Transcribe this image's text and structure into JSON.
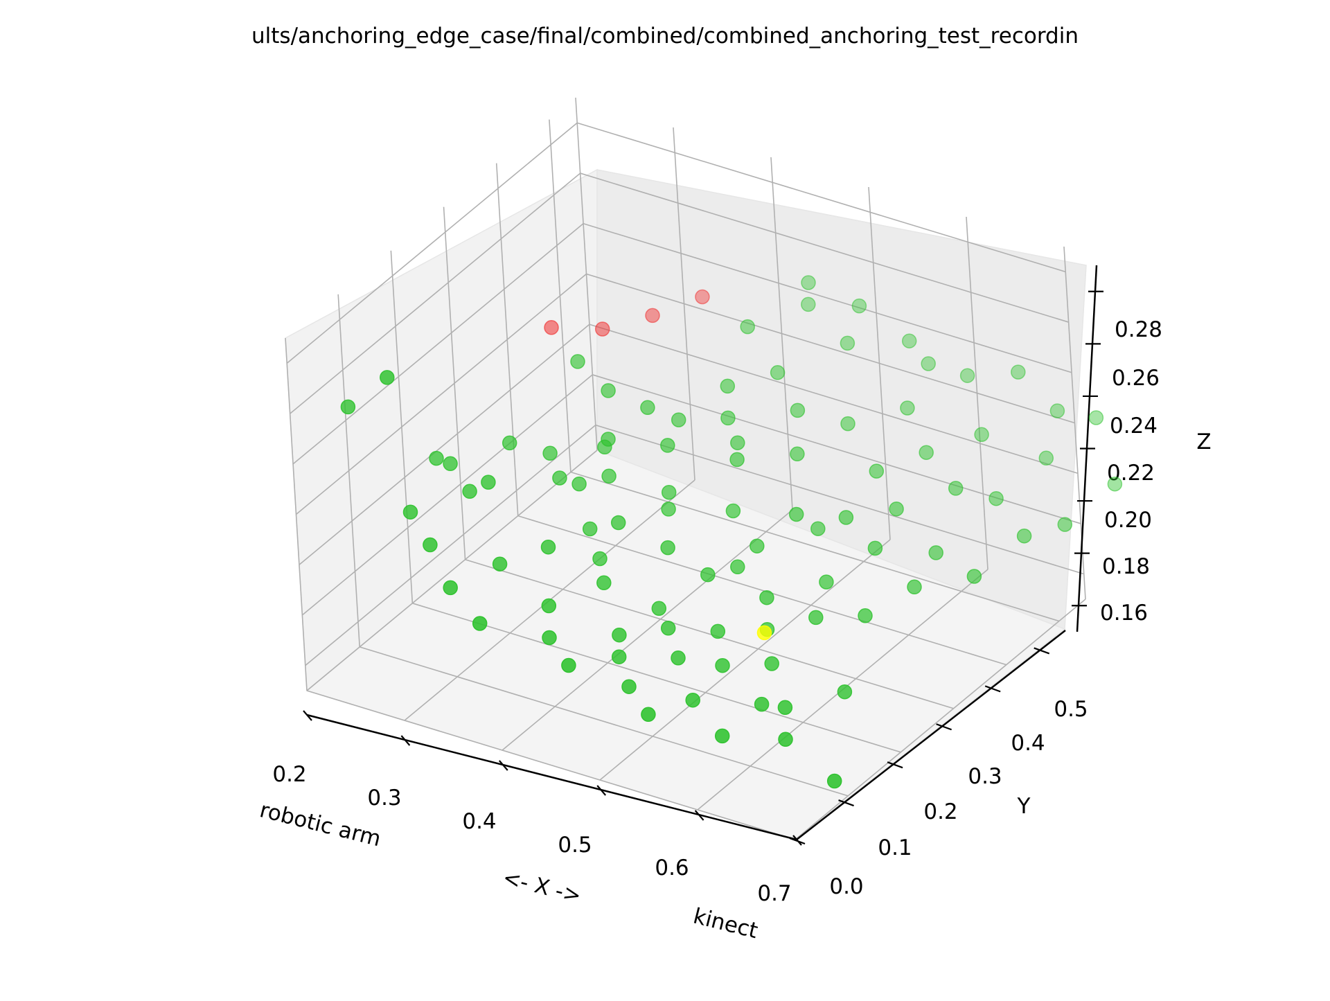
{
  "chart_data": {
    "type": "scatter3d",
    "title": "ults/anchoring_edge_case/final/combined/combined_anchoring_test_recordin",
    "axis_labels": {
      "x_left": "robotic arm",
      "x_center": "<- X ->",
      "x_right": "kinect",
      "y": "Y",
      "z": "Z"
    },
    "x_ticks": [
      "0.2",
      "0.3",
      "0.4",
      "0.5",
      "0.6",
      "0.7"
    ],
    "y_ticks": [
      "0.0",
      "0.1",
      "0.2",
      "0.3",
      "0.4",
      "0.5"
    ],
    "z_ticks": [
      "0.16",
      "0.18",
      "0.20",
      "0.22",
      "0.24",
      "0.26",
      "0.28"
    ],
    "xlim": [
      0.2,
      0.7
    ],
    "ylim": [
      0.0,
      0.55
    ],
    "zlim": [
      0.15,
      0.29
    ],
    "grid": true,
    "colors": {
      "ok": "#2ec22e",
      "error": "#f03030",
      "highlight": "#ffff00"
    },
    "series": [
      {
        "key": "ok",
        "points": [
          [
            0.18,
            0.14,
            0.236
          ],
          [
            0.24,
            0.19,
            0.214
          ],
          [
            0.26,
            0.18,
            0.216
          ],
          [
            0.29,
            0.16,
            0.212
          ],
          [
            0.3,
            0.22,
            0.222
          ],
          [
            0.31,
            0.16,
            0.218
          ],
          [
            0.33,
            0.24,
            0.218
          ],
          [
            0.35,
            0.22,
            0.214
          ],
          [
            0.37,
            0.27,
            0.22
          ],
          [
            0.39,
            0.2,
            0.202
          ],
          [
            0.4,
            0.1,
            0.19
          ],
          [
            0.42,
            0.32,
            0.228
          ],
          [
            0.44,
            0.26,
            0.212
          ],
          [
            0.45,
            0.36,
            0.238
          ],
          [
            0.47,
            0.2,
            0.204
          ],
          [
            0.48,
            0.4,
            0.24
          ],
          [
            0.5,
            0.27,
            0.21
          ],
          [
            0.51,
            0.38,
            0.232
          ],
          [
            0.53,
            0.22,
            0.2
          ],
          [
            0.55,
            0.4,
            0.228
          ],
          [
            0.57,
            0.3,
            0.206
          ],
          [
            0.59,
            0.44,
            0.232
          ],
          [
            0.61,
            0.24,
            0.2
          ],
          [
            0.63,
            0.34,
            0.214
          ],
          [
            0.66,
            0.45,
            0.228
          ],
          [
            0.68,
            0.32,
            0.206
          ],
          [
            0.7,
            0.4,
            0.216
          ],
          [
            0.34,
            0.12,
            0.196
          ],
          [
            0.38,
            0.14,
            0.204
          ],
          [
            0.41,
            0.18,
            0.196
          ],
          [
            0.43,
            0.15,
            0.194
          ],
          [
            0.46,
            0.12,
            0.182
          ],
          [
            0.48,
            0.16,
            0.188
          ],
          [
            0.5,
            0.14,
            0.186
          ],
          [
            0.52,
            0.12,
            0.18
          ],
          [
            0.54,
            0.16,
            0.186
          ],
          [
            0.56,
            0.13,
            0.18
          ],
          [
            0.58,
            0.18,
            0.188
          ],
          [
            0.6,
            0.15,
            0.182
          ],
          [
            0.62,
            0.2,
            0.194
          ],
          [
            0.64,
            0.1,
            0.178
          ],
          [
            0.66,
            0.22,
            0.196
          ],
          [
            0.68,
            0.14,
            0.182
          ],
          [
            0.44,
            0.42,
            0.25
          ],
          [
            0.47,
            0.48,
            0.252
          ],
          [
            0.52,
            0.46,
            0.246
          ],
          [
            0.55,
            0.52,
            0.24
          ],
          [
            0.58,
            0.5,
            0.238
          ],
          [
            0.4,
            0.3,
            0.234
          ],
          [
            0.43,
            0.28,
            0.226
          ],
          [
            0.46,
            0.34,
            0.23
          ],
          [
            0.49,
            0.3,
            0.224
          ],
          [
            0.36,
            0.3,
            0.236
          ],
          [
            0.38,
            0.26,
            0.226
          ],
          [
            0.33,
            0.3,
            0.244
          ],
          [
            0.53,
            0.34,
            0.224
          ],
          [
            0.56,
            0.28,
            0.214
          ],
          [
            0.6,
            0.36,
            0.222
          ],
          [
            0.64,
            0.28,
            0.21
          ],
          [
            0.67,
            0.38,
            0.22
          ],
          [
            0.72,
            0.46,
            0.224
          ],
          [
            0.74,
            0.52,
            0.232
          ],
          [
            0.75,
            0.36,
            0.214
          ],
          [
            0.73,
            0.3,
            0.206
          ],
          [
            0.62,
            0.5,
            0.238
          ],
          [
            0.65,
            0.54,
            0.236
          ],
          [
            0.7,
            0.52,
            0.23
          ],
          [
            0.45,
            0.24,
            0.21
          ],
          [
            0.42,
            0.2,
            0.208
          ],
          [
            0.39,
            0.24,
            0.216
          ],
          [
            0.51,
            0.2,
            0.198
          ],
          [
            0.54,
            0.24,
            0.206
          ],
          [
            0.57,
            0.2,
            0.196
          ],
          [
            0.47,
            0.1,
            0.178
          ],
          [
            0.49,
            0.08,
            0.172
          ],
          [
            0.52,
            0.06,
            0.168
          ],
          [
            0.55,
            0.09,
            0.172
          ],
          [
            0.59,
            0.07,
            0.166
          ],
          [
            0.61,
            0.11,
            0.174
          ],
          [
            0.65,
            0.08,
            0.17
          ],
          [
            0.71,
            0.06,
            0.164
          ],
          [
            0.28,
            0.1,
            0.2
          ],
          [
            0.25,
            0.12,
            0.206
          ],
          [
            0.31,
            0.08,
            0.19
          ],
          [
            0.35,
            0.06,
            0.184
          ],
          [
            0.44,
            0.06,
            0.178
          ],
          [
            0.41,
            0.08,
            0.182
          ],
          [
            0.63,
            0.4,
            0.226
          ],
          [
            0.69,
            0.26,
            0.204
          ],
          [
            0.77,
            0.4,
            0.214
          ],
          [
            0.79,
            0.46,
            0.222
          ],
          [
            0.6,
            0.3,
            0.214
          ],
          [
            0.5,
            0.52,
            0.248
          ],
          [
            0.46,
            0.5,
            0.256
          ],
          [
            0.48,
            0.32,
            0.226
          ],
          [
            0.37,
            0.22,
            0.214
          ],
          [
            0.24,
            0.11,
            0.26
          ]
        ]
      },
      {
        "key": "error",
        "points": [
          [
            0.27,
            0.36,
            0.24
          ],
          [
            0.3,
            0.4,
            0.236
          ],
          [
            0.33,
            0.44,
            0.238
          ],
          [
            0.36,
            0.48,
            0.242
          ]
        ]
      },
      {
        "key": "highlight",
        "points": [
          [
            0.6,
            0.14,
            0.196
          ]
        ]
      }
    ]
  }
}
